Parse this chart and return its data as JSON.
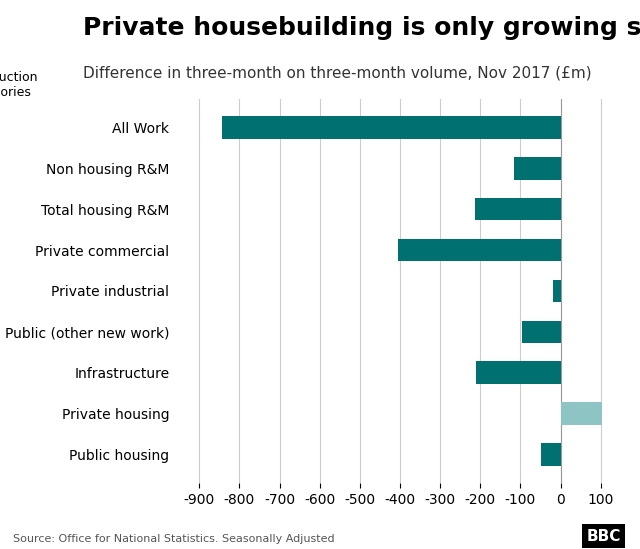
{
  "title": "Private housebuilding is only growing sector",
  "subtitle": "Difference in three-month on three-month volume, Nov 2017 (£m)",
  "ylabel_label": "Construction\ncategories",
  "source": "Source: Office for National Statistics. Seasonally Adjusted",
  "categories": [
    "All Work",
    "Non housing R&M",
    "Total housing R&M",
    "Private commercial",
    "Private industrial",
    "Public (other new work)",
    "Infrastructure",
    "Private housing",
    "Public housing"
  ],
  "values": [
    -844,
    -115,
    -214,
    -404,
    -18,
    -95,
    -210,
    102,
    -50
  ],
  "bar_colors": [
    "#007070",
    "#007070",
    "#007070",
    "#007070",
    "#007070",
    "#007070",
    "#007070",
    "#8fc4c4",
    "#007070"
  ],
  "xlim": [
    -950,
    150
  ],
  "xticks": [
    -900,
    -800,
    -700,
    -600,
    -500,
    -400,
    -300,
    -200,
    -100,
    0,
    100
  ],
  "background_color": "#ffffff",
  "grid_color": "#cccccc",
  "title_fontsize": 18,
  "subtitle_fontsize": 11,
  "tick_fontsize": 10,
  "bar_height": 0.55,
  "bbc_logo_color": "#000000"
}
